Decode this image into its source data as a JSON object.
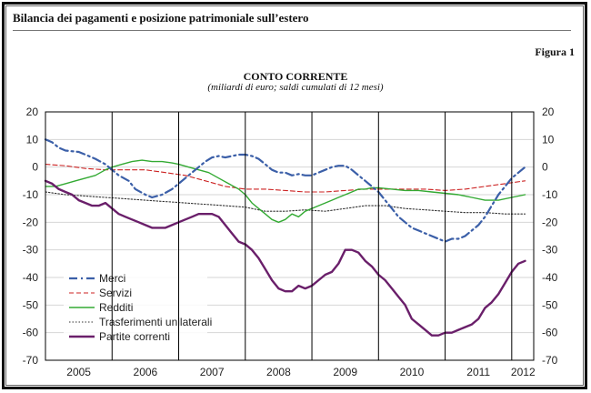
{
  "header": {
    "title": "Bilancia dei pagamenti e posizione patrimoniale sull’estero",
    "figure_label": "Figura 1"
  },
  "chart_data": {
    "type": "line",
    "title": "CONTO CORRENTE",
    "subtitle": "(miliardi di euro; saldi cumulati di 12 mesi)",
    "xlabel": "",
    "ylabel": "",
    "x_range": [
      2005.0,
      2012.33
    ],
    "ylim": [
      -70,
      20
    ],
    "y_ticks": [
      20,
      10,
      0,
      -10,
      -20,
      -30,
      -40,
      -50,
      -60,
      -70
    ],
    "y_axis_both_sides": true,
    "x_ticks": [
      {
        "label": "2005",
        "center": 2005.5
      },
      {
        "label": "2006",
        "center": 2006.5
      },
      {
        "label": "2007",
        "center": 2007.5
      },
      {
        "label": "2008",
        "center": 2008.5
      },
      {
        "label": "2009",
        "center": 2009.5
      },
      {
        "label": "2010",
        "center": 2010.5
      },
      {
        "label": "2011",
        "center": 2011.5
      },
      {
        "label": "2012",
        "center": 2012.17
      }
    ],
    "year_boundaries": [
      2006,
      2007,
      2008,
      2009,
      2010,
      2011,
      2012
    ],
    "legend_position": "bottom-left",
    "series": [
      {
        "name": "Merci",
        "color": "#3b5fa8",
        "style": "dashdot",
        "points": [
          [
            2005.0,
            10
          ],
          [
            2005.1,
            9
          ],
          [
            2005.2,
            7
          ],
          [
            2005.3,
            6
          ],
          [
            2005.5,
            5.5
          ],
          [
            2005.6,
            4.5
          ],
          [
            2005.75,
            3
          ],
          [
            2005.9,
            1
          ],
          [
            2006.0,
            -1
          ],
          [
            2006.1,
            -3
          ],
          [
            2006.25,
            -5
          ],
          [
            2006.35,
            -8
          ],
          [
            2006.5,
            -10
          ],
          [
            2006.6,
            -11
          ],
          [
            2006.75,
            -10
          ],
          [
            2006.9,
            -8
          ],
          [
            2007.0,
            -6
          ],
          [
            2007.1,
            -4
          ],
          [
            2007.2,
            -2
          ],
          [
            2007.3,
            0
          ],
          [
            2007.4,
            2
          ],
          [
            2007.5,
            3.5
          ],
          [
            2007.6,
            4
          ],
          [
            2007.7,
            3.5
          ],
          [
            2007.8,
            4
          ],
          [
            2007.9,
            4.5
          ],
          [
            2008.0,
            4.5
          ],
          [
            2008.1,
            4
          ],
          [
            2008.2,
            3
          ],
          [
            2008.3,
            1
          ],
          [
            2008.4,
            -1
          ],
          [
            2008.5,
            -2
          ],
          [
            2008.6,
            -2
          ],
          [
            2008.7,
            -3
          ],
          [
            2008.8,
            -2.5
          ],
          [
            2008.9,
            -3
          ],
          [
            2009.0,
            -3
          ],
          [
            2009.1,
            -2
          ],
          [
            2009.2,
            -1
          ],
          [
            2009.3,
            0
          ],
          [
            2009.4,
            0.5
          ],
          [
            2009.5,
            0.5
          ],
          [
            2009.6,
            -1
          ],
          [
            2009.7,
            -3
          ],
          [
            2009.8,
            -5
          ],
          [
            2009.9,
            -7
          ],
          [
            2010.0,
            -9
          ],
          [
            2010.1,
            -12
          ],
          [
            2010.2,
            -15
          ],
          [
            2010.3,
            -18
          ],
          [
            2010.4,
            -20
          ],
          [
            2010.5,
            -22
          ],
          [
            2010.6,
            -23
          ],
          [
            2010.7,
            -24
          ],
          [
            2010.8,
            -25
          ],
          [
            2010.9,
            -26
          ],
          [
            2011.0,
            -27
          ],
          [
            2011.1,
            -26
          ],
          [
            2011.2,
            -26
          ],
          [
            2011.3,
            -25
          ],
          [
            2011.4,
            -23
          ],
          [
            2011.5,
            -21
          ],
          [
            2011.6,
            -18
          ],
          [
            2011.7,
            -14
          ],
          [
            2011.8,
            -10
          ],
          [
            2011.9,
            -7
          ],
          [
            2012.0,
            -4
          ],
          [
            2012.1,
            -2
          ],
          [
            2012.2,
            0
          ]
        ]
      },
      {
        "name": "Servizi",
        "color": "#cc2222",
        "style": "dashed",
        "points": [
          [
            2005.0,
            1
          ],
          [
            2005.3,
            0.5
          ],
          [
            2005.6,
            -0.5
          ],
          [
            2005.9,
            -1
          ],
          [
            2006.2,
            -1
          ],
          [
            2006.5,
            -1
          ],
          [
            2006.8,
            -2
          ],
          [
            2007.1,
            -3
          ],
          [
            2007.4,
            -5
          ],
          [
            2007.7,
            -7
          ],
          [
            2008.0,
            -8
          ],
          [
            2008.3,
            -8
          ],
          [
            2008.6,
            -8.5
          ],
          [
            2008.9,
            -9
          ],
          [
            2009.2,
            -9
          ],
          [
            2009.5,
            -8.5
          ],
          [
            2009.8,
            -8
          ],
          [
            2010.1,
            -8
          ],
          [
            2010.4,
            -8
          ],
          [
            2010.7,
            -8
          ],
          [
            2011.0,
            -8.5
          ],
          [
            2011.3,
            -8
          ],
          [
            2011.6,
            -7
          ],
          [
            2011.9,
            -6
          ],
          [
            2012.2,
            -5
          ]
        ]
      },
      {
        "name": "Redditi",
        "color": "#33aa33",
        "style": "solid",
        "points": [
          [
            2005.0,
            -7
          ],
          [
            2005.15,
            -7
          ],
          [
            2005.3,
            -6
          ],
          [
            2005.45,
            -5
          ],
          [
            2005.6,
            -4
          ],
          [
            2005.75,
            -3
          ],
          [
            2005.9,
            -1
          ],
          [
            2006.0,
            0
          ],
          [
            2006.15,
            1
          ],
          [
            2006.3,
            2
          ],
          [
            2006.45,
            2.5
          ],
          [
            2006.6,
            2
          ],
          [
            2006.75,
            2
          ],
          [
            2006.9,
            1.5
          ],
          [
            2007.0,
            1
          ],
          [
            2007.15,
            0
          ],
          [
            2007.3,
            -1
          ],
          [
            2007.45,
            -2
          ],
          [
            2007.6,
            -4
          ],
          [
            2007.75,
            -6
          ],
          [
            2007.9,
            -8
          ],
          [
            2008.0,
            -10
          ],
          [
            2008.1,
            -13
          ],
          [
            2008.2,
            -15
          ],
          [
            2008.3,
            -17
          ],
          [
            2008.4,
            -19
          ],
          [
            2008.5,
            -20
          ],
          [
            2008.6,
            -19
          ],
          [
            2008.7,
            -17
          ],
          [
            2008.8,
            -18
          ],
          [
            2008.9,
            -16
          ],
          [
            2009.0,
            -15
          ],
          [
            2009.1,
            -14
          ],
          [
            2009.2,
            -13
          ],
          [
            2009.3,
            -12
          ],
          [
            2009.4,
            -11
          ],
          [
            2009.5,
            -10
          ],
          [
            2009.6,
            -9
          ],
          [
            2009.7,
            -8
          ],
          [
            2009.8,
            -8
          ],
          [
            2009.9,
            -7.5
          ],
          [
            2010.0,
            -7.5
          ],
          [
            2010.2,
            -8
          ],
          [
            2010.4,
            -8.5
          ],
          [
            2010.6,
            -8.5
          ],
          [
            2010.8,
            -9
          ],
          [
            2011.0,
            -9.5
          ],
          [
            2011.2,
            -10
          ],
          [
            2011.4,
            -11
          ],
          [
            2011.6,
            -12
          ],
          [
            2011.8,
            -12
          ],
          [
            2012.0,
            -11
          ],
          [
            2012.2,
            -10
          ]
        ]
      },
      {
        "name": "Trasferimenti unilaterali",
        "color": "#333333",
        "style": "dotted",
        "points": [
          [
            2005.0,
            -9
          ],
          [
            2005.3,
            -10
          ],
          [
            2005.6,
            -10.5
          ],
          [
            2005.9,
            -11
          ],
          [
            2006.2,
            -11.5
          ],
          [
            2006.5,
            -12
          ],
          [
            2006.8,
            -12.5
          ],
          [
            2007.1,
            -13
          ],
          [
            2007.4,
            -13.5
          ],
          [
            2007.7,
            -14
          ],
          [
            2008.0,
            -14.5
          ],
          [
            2008.3,
            -16
          ],
          [
            2008.6,
            -16
          ],
          [
            2008.9,
            -15.5
          ],
          [
            2009.2,
            -16
          ],
          [
            2009.5,
            -15
          ],
          [
            2009.8,
            -14
          ],
          [
            2010.1,
            -14
          ],
          [
            2010.4,
            -15
          ],
          [
            2010.7,
            -15.5
          ],
          [
            2011.0,
            -16
          ],
          [
            2011.3,
            -16.5
          ],
          [
            2011.6,
            -16.5
          ],
          [
            2011.9,
            -17
          ],
          [
            2012.2,
            -17
          ]
        ]
      },
      {
        "name": "Partite correnti",
        "color": "#6a1f6a",
        "style": "solid-thick",
        "points": [
          [
            2005.0,
            -5
          ],
          [
            2005.1,
            -6
          ],
          [
            2005.2,
            -8
          ],
          [
            2005.3,
            -9
          ],
          [
            2005.4,
            -10
          ],
          [
            2005.5,
            -12
          ],
          [
            2005.6,
            -13
          ],
          [
            2005.7,
            -14
          ],
          [
            2005.8,
            -14
          ],
          [
            2005.9,
            -13
          ],
          [
            2006.0,
            -15
          ],
          [
            2006.1,
            -17
          ],
          [
            2006.2,
            -18
          ],
          [
            2006.3,
            -19
          ],
          [
            2006.4,
            -20
          ],
          [
            2006.5,
            -21
          ],
          [
            2006.6,
            -22
          ],
          [
            2006.7,
            -22
          ],
          [
            2006.8,
            -22
          ],
          [
            2006.9,
            -21
          ],
          [
            2007.0,
            -20
          ],
          [
            2007.1,
            -19
          ],
          [
            2007.2,
            -18
          ],
          [
            2007.3,
            -17
          ],
          [
            2007.4,
            -17
          ],
          [
            2007.5,
            -17
          ],
          [
            2007.6,
            -18
          ],
          [
            2007.7,
            -21
          ],
          [
            2007.8,
            -24
          ],
          [
            2007.9,
            -27
          ],
          [
            2008.0,
            -28
          ],
          [
            2008.1,
            -30
          ],
          [
            2008.2,
            -33
          ],
          [
            2008.3,
            -37
          ],
          [
            2008.4,
            -41
          ],
          [
            2008.5,
            -44
          ],
          [
            2008.6,
            -45
          ],
          [
            2008.7,
            -45
          ],
          [
            2008.8,
            -43
          ],
          [
            2008.9,
            -44
          ],
          [
            2009.0,
            -43
          ],
          [
            2009.1,
            -41
          ],
          [
            2009.2,
            -39
          ],
          [
            2009.3,
            -38
          ],
          [
            2009.4,
            -35
          ],
          [
            2009.5,
            -30
          ],
          [
            2009.6,
            -30
          ],
          [
            2009.7,
            -31
          ],
          [
            2009.8,
            -34
          ],
          [
            2009.9,
            -36
          ],
          [
            2010.0,
            -39
          ],
          [
            2010.1,
            -41
          ],
          [
            2010.2,
            -44
          ],
          [
            2010.3,
            -47
          ],
          [
            2010.4,
            -50
          ],
          [
            2010.5,
            -55
          ],
          [
            2010.6,
            -57
          ],
          [
            2010.7,
            -59
          ],
          [
            2010.8,
            -61
          ],
          [
            2010.9,
            -61
          ],
          [
            2011.0,
            -60
          ],
          [
            2011.1,
            -60
          ],
          [
            2011.2,
            -59
          ],
          [
            2011.3,
            -58
          ],
          [
            2011.4,
            -57
          ],
          [
            2011.5,
            -55
          ],
          [
            2011.6,
            -51
          ],
          [
            2011.7,
            -49
          ],
          [
            2011.8,
            -46
          ],
          [
            2011.9,
            -42
          ],
          [
            2012.0,
            -38
          ],
          [
            2012.1,
            -35
          ],
          [
            2012.2,
            -34
          ]
        ]
      }
    ]
  }
}
